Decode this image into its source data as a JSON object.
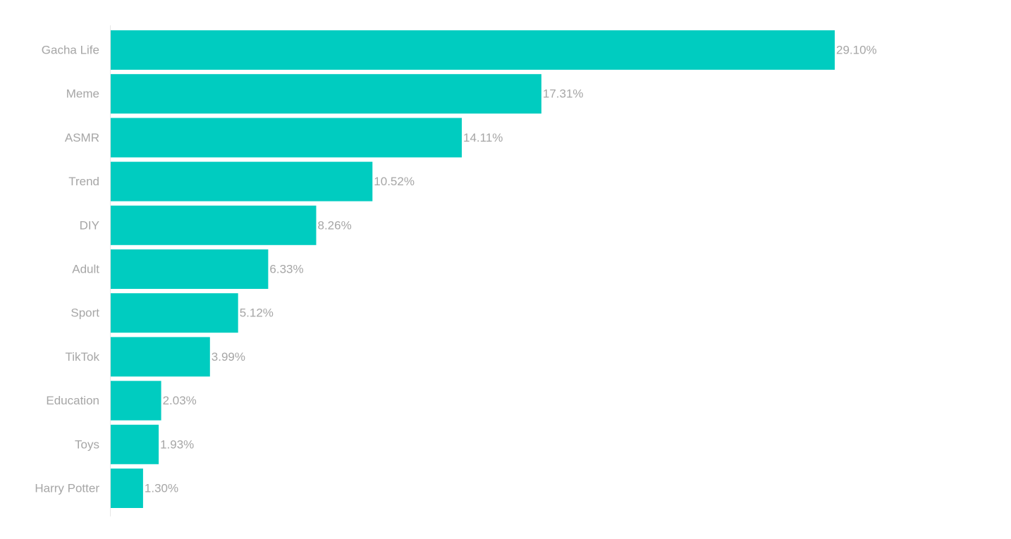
{
  "chart_data": {
    "type": "bar",
    "orientation": "horizontal",
    "title": "",
    "xlabel": "",
    "ylabel": "",
    "categories": [
      "Gacha Life",
      "Meme",
      "ASMR",
      "Trend",
      "DIY",
      "Adult",
      "Sport",
      "TikTok",
      "Education",
      "Toys",
      "Harry Potter"
    ],
    "values": [
      29.1,
      17.31,
      14.11,
      10.52,
      8.26,
      6.33,
      5.12,
      3.99,
      2.03,
      1.93,
      1.3
    ],
    "value_labels": [
      "29.10%",
      "17.31%",
      "14.11%",
      "10.52%",
      "8.26%",
      "6.33%",
      "5.12%",
      "3.99%",
      "2.03%",
      "1.93%",
      "1.30%"
    ],
    "value_unit": "%",
    "xlim": [
      0,
      29.1
    ],
    "grid": false,
    "legend": "none"
  },
  "colors": {
    "bar": "#00CCC0",
    "label_text": "#A6A6A6",
    "axis_line": "#E6E6E6",
    "background": "#FFFFFF"
  }
}
